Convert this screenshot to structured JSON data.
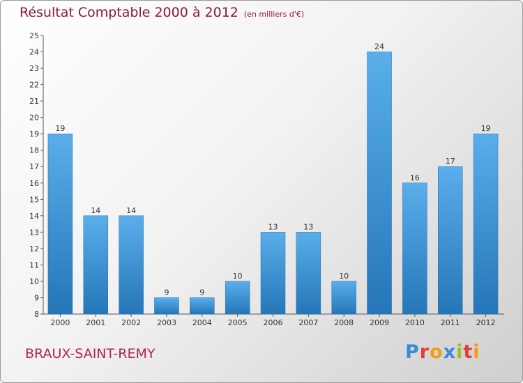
{
  "header": {
    "title": "Résultat Comptable 2000 à 2012",
    "subtitle": "(en milliers d'€)"
  },
  "footer": {
    "commune": "BRAUX-SAINT-REMY",
    "logo": "Proxiti",
    "logo_colors": [
      "#3a8ad8",
      "#e83b3b",
      "#f39c12",
      "#3a8ad8",
      "#9bc02a",
      "#e83b3b",
      "#f39c12"
    ]
  },
  "chart_data": {
    "type": "bar",
    "title": "Résultat Comptable 2000 à 2012",
    "subtitle": "(en milliers d'€)",
    "categories": [
      "2000",
      "2001",
      "2002",
      "2003",
      "2004",
      "2005",
      "2006",
      "2007",
      "2008",
      "2009",
      "2010",
      "2011",
      "2012"
    ],
    "values": [
      19,
      14,
      14,
      9,
      9,
      10,
      13,
      13,
      10,
      24,
      16,
      17,
      19
    ],
    "ylim": [
      8,
      25
    ],
    "yticks": [
      8,
      9,
      10,
      11,
      12,
      13,
      14,
      15,
      16,
      17,
      18,
      19,
      20,
      21,
      22,
      23,
      24,
      25
    ],
    "grid": false,
    "bar_color_top": "#5aaeea",
    "bar_color_bottom": "#2576b8"
  }
}
